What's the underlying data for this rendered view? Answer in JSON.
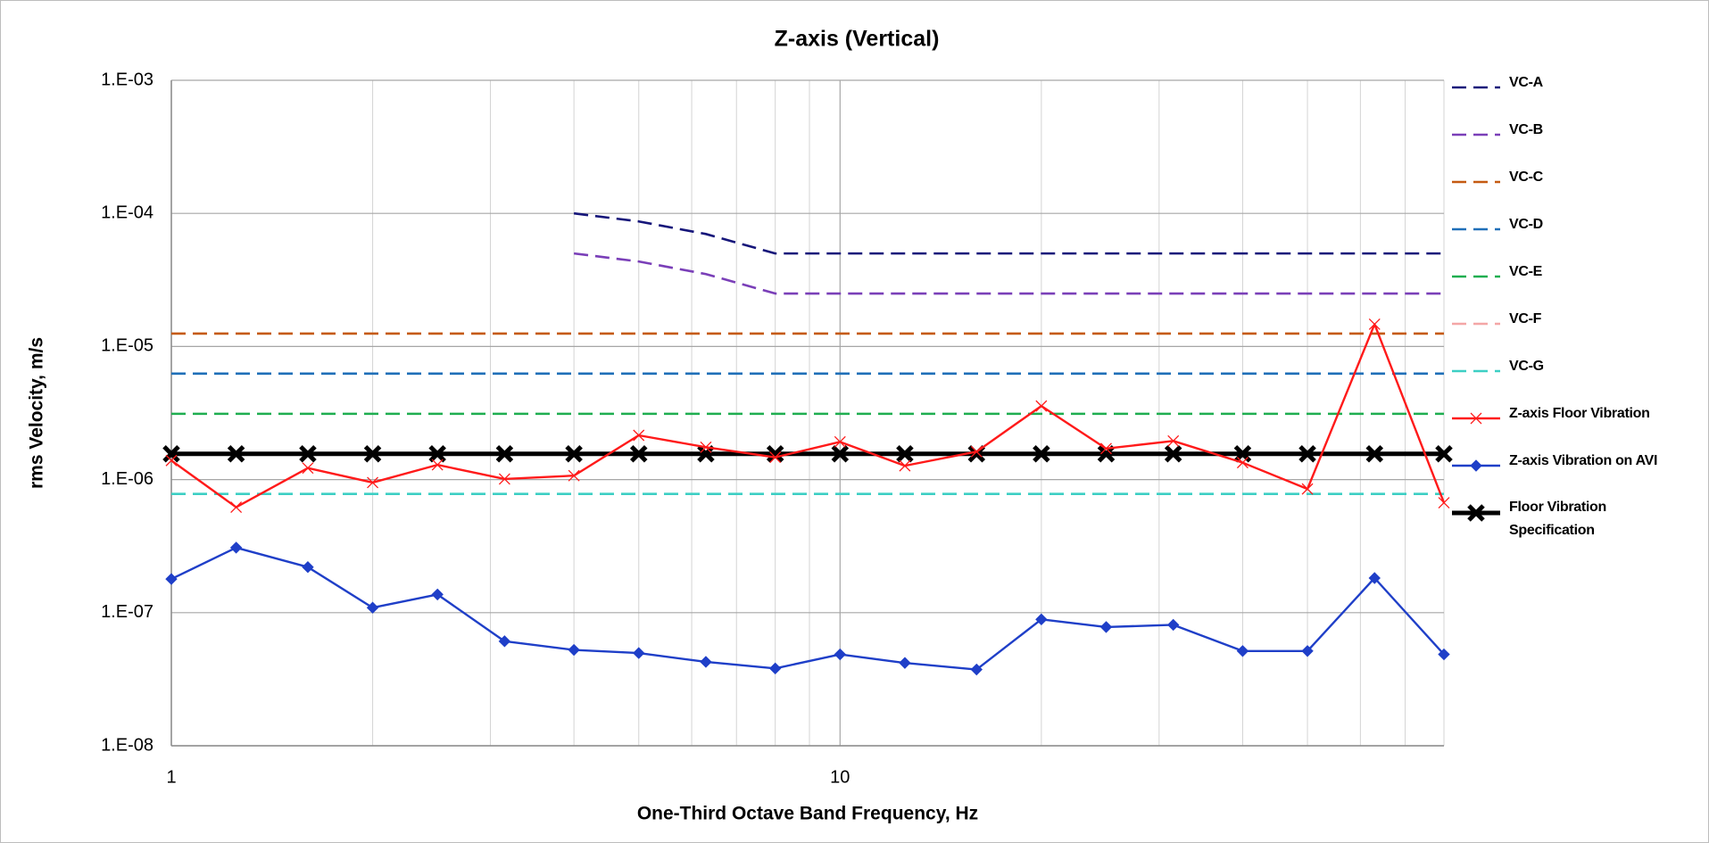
{
  "chart_data": {
    "type": "line",
    "title": "Z-axis (Vertical)",
    "x_label": "One-Third Octave Band Frequency, Hz",
    "y_label": "rms Velocity, m/s",
    "log_x": true,
    "log_y": true,
    "grid": true,
    "legend": "right",
    "xlim": [
      1,
      80
    ],
    "ylim": [
      1e-08,
      0.001
    ],
    "xticks": [
      1,
      10
    ],
    "yticks": [
      {
        "value": 1e-08,
        "label": "1.E-08"
      },
      {
        "value": 1e-07,
        "label": "1.E-07"
      },
      {
        "value": 1e-06,
        "label": "1.E-06"
      },
      {
        "value": 1e-05,
        "label": "1.E-05"
      },
      {
        "value": 0.0001,
        "label": "1.E-04"
      },
      {
        "value": 0.001,
        "label": "1.E-03"
      }
    ],
    "x": [
      1,
      1.25,
      1.6,
      2,
      2.5,
      3.15,
      4,
      5,
      6.3,
      8,
      10,
      12.5,
      16,
      20,
      25,
      31.5,
      40,
      50,
      63,
      80
    ],
    "series": [
      {
        "name": "VC-A",
        "color": "#16167a",
        "dash": true,
        "values": [
          null,
          null,
          null,
          null,
          null,
          null,
          0.0001,
          8.7e-05,
          7e-05,
          5e-05,
          5e-05,
          5e-05,
          5e-05,
          5e-05,
          5e-05,
          5e-05,
          5e-05,
          5e-05,
          5e-05,
          5e-05
        ]
      },
      {
        "name": "VC-B",
        "color": "#7a3fb8",
        "dash": true,
        "values": [
          null,
          null,
          null,
          null,
          null,
          null,
          5e-05,
          4.35e-05,
          3.5e-05,
          2.5e-05,
          2.5e-05,
          2.5e-05,
          2.5e-05,
          2.5e-05,
          2.5e-05,
          2.5e-05,
          2.5e-05,
          2.5e-05,
          2.5e-05,
          2.5e-05
        ]
      },
      {
        "name": "VC-C",
        "color": "#c55a11",
        "dash": true,
        "values": [
          1.25e-05,
          1.25e-05,
          1.25e-05,
          1.25e-05,
          1.25e-05,
          1.25e-05,
          1.25e-05,
          1.25e-05,
          1.25e-05,
          1.25e-05,
          1.25e-05,
          1.25e-05,
          1.25e-05,
          1.25e-05,
          1.25e-05,
          1.25e-05,
          1.25e-05,
          1.25e-05,
          1.25e-05,
          1.25e-05
        ]
      },
      {
        "name": "VC-D",
        "color": "#1f6fb8",
        "dash": true,
        "values": [
          6.25e-06,
          6.25e-06,
          6.25e-06,
          6.25e-06,
          6.25e-06,
          6.25e-06,
          6.25e-06,
          6.25e-06,
          6.25e-06,
          6.25e-06,
          6.25e-06,
          6.25e-06,
          6.25e-06,
          6.25e-06,
          6.25e-06,
          6.25e-06,
          6.25e-06,
          6.25e-06,
          6.25e-06,
          6.25e-06
        ]
      },
      {
        "name": "VC-E",
        "color": "#1fae50",
        "dash": true,
        "values": [
          3.12e-06,
          3.12e-06,
          3.12e-06,
          3.12e-06,
          3.12e-06,
          3.12e-06,
          3.12e-06,
          3.12e-06,
          3.12e-06,
          3.12e-06,
          3.12e-06,
          3.12e-06,
          3.12e-06,
          3.12e-06,
          3.12e-06,
          3.12e-06,
          3.12e-06,
          3.12e-06,
          3.12e-06,
          3.12e-06
        ]
      },
      {
        "name": "VC-F",
        "color": "#f4a6a6",
        "dash": true,
        "values": [
          1.56e-06,
          1.56e-06,
          1.56e-06,
          1.56e-06,
          1.56e-06,
          1.56e-06,
          1.56e-06,
          1.56e-06,
          1.56e-06,
          1.56e-06,
          1.56e-06,
          1.56e-06,
          1.56e-06,
          1.56e-06,
          1.56e-06,
          1.56e-06,
          1.56e-06,
          1.56e-06,
          1.56e-06,
          1.56e-06
        ]
      },
      {
        "name": "VC-G",
        "color": "#3ccfc4",
        "dash": true,
        "values": [
          7.8e-07,
          7.8e-07,
          7.8e-07,
          7.8e-07,
          7.8e-07,
          7.8e-07,
          7.8e-07,
          7.8e-07,
          7.8e-07,
          7.8e-07,
          7.8e-07,
          7.8e-07,
          7.8e-07,
          7.8e-07,
          7.8e-07,
          7.8e-07,
          7.8e-07,
          7.8e-07,
          7.8e-07,
          7.8e-07
        ]
      },
      {
        "name": "Floor Vibration Specification",
        "color": "#000000",
        "marker": "bigx",
        "values": [
          1.56e-06,
          1.56e-06,
          1.56e-06,
          1.56e-06,
          1.56e-06,
          1.56e-06,
          1.56e-06,
          1.56e-06,
          1.56e-06,
          1.56e-06,
          1.56e-06,
          1.56e-06,
          1.56e-06,
          1.56e-06,
          1.56e-06,
          1.56e-06,
          1.56e-06,
          1.56e-06,
          1.56e-06,
          1.56e-06
        ]
      },
      {
        "name": "Z-axis Floor Vibration",
        "color": "#ff1a1a",
        "marker": "x",
        "values": [
          1.39e-06,
          6.2e-07,
          1.22e-06,
          9.5e-07,
          1.29e-06,
          1.01e-06,
          1.07e-06,
          2.15e-06,
          1.75e-06,
          1.47e-06,
          1.92e-06,
          1.27e-06,
          1.62e-06,
          3.57e-06,
          1.71e-06,
          1.95e-06,
          1.34e-06,
          8.5e-07,
          1.47e-05,
          6.7e-07
        ]
      },
      {
        "name": "Z-axis Vibration on AVI",
        "color": "#1f3fc8",
        "marker": "diamond",
        "values": [
          1.79e-07,
          3.08e-07,
          2.2e-07,
          1.09e-07,
          1.37e-07,
          6.1e-08,
          5.25e-08,
          4.97e-08,
          4.27e-08,
          3.81e-08,
          4.86e-08,
          4.19e-08,
          3.74e-08,
          8.9e-08,
          7.8e-08,
          8.1e-08,
          5.15e-08,
          5.15e-08,
          1.82e-07,
          4.86e-08
        ]
      }
    ],
    "legend_order": [
      0,
      1,
      2,
      3,
      4,
      5,
      6,
      8,
      9,
      7
    ]
  }
}
